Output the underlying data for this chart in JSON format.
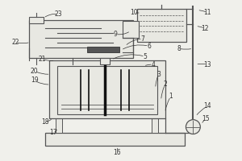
{
  "bg_color": "#f0f0eb",
  "line_color": "#555555",
  "dark_color": "#111111",
  "label_color": "#333333",
  "fig_width": 3.0,
  "fig_height": 2.0,
  "dpi": 100
}
